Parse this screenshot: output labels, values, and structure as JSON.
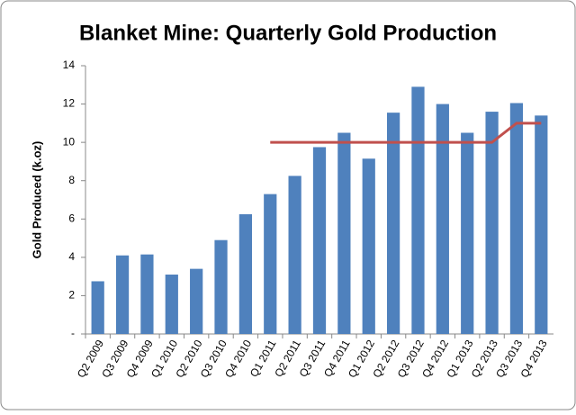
{
  "chart_data": {
    "type": "bar",
    "title": "Blanket Mine: Quarterly Gold Production",
    "y_label": "Gold Produced (k.oz)",
    "categories": [
      "Q2 2009",
      "Q3 2009",
      "Q4 2009",
      "Q1 2010",
      "Q2 2010",
      "Q3 2010",
      "Q4 2010",
      "Q1 2011",
      "Q2 2011",
      "Q3 2011",
      "Q4 2011",
      "Q1 2012",
      "Q2 2012",
      "Q3 2012",
      "Q4 2012",
      "Q1 2013",
      "Q2 2013",
      "Q3 2013",
      "Q4 2013"
    ],
    "series": [
      {
        "type": "bar",
        "color": "#4f81bd",
        "values": [
          2.75,
          4.1,
          4.15,
          3.1,
          3.4,
          4.9,
          6.25,
          7.3,
          8.25,
          9.75,
          10.5,
          9.15,
          11.55,
          12.9,
          12.0,
          10.5,
          11.6,
          12.05,
          11.4
        ]
      },
      {
        "type": "line",
        "color": "#c0504d",
        "values": [
          null,
          null,
          null,
          null,
          null,
          null,
          null,
          10,
          10,
          10,
          10,
          10,
          10,
          10,
          10,
          10,
          10,
          11,
          11
        ]
      }
    ],
    "ylim": [
      0,
      14
    ],
    "yticks": [
      {
        "value": 0,
        "label": "-"
      },
      2,
      4,
      6,
      8,
      10,
      12,
      14
    ],
    "grid": false
  }
}
